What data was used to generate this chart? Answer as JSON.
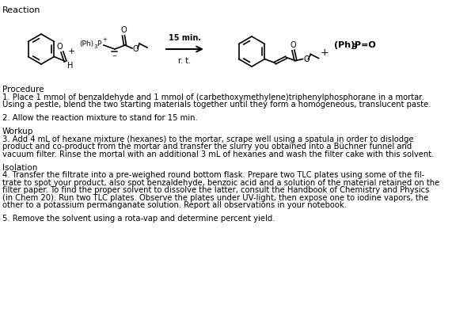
{
  "title": "Reaction",
  "reaction_label_15min": "15 min.",
  "reaction_label_rt": "r. t.",
  "procedure_header": "Procedure",
  "step1a": "1. Place 1 mmol of benzaldehyde and 1 mmol of (carbethoxymethylene)triphenylphosphorane in a mortar.",
  "step1b": "Using a pestle, blend the two starting materials together until they form a homogeneous, translucent paste.",
  "step2": "2. Allow the reaction mixture to stand for 15 min.",
  "workup_header": "Workup",
  "step3a": "3. Add 4 mL of hexane mixture (hexanes) to the mortar, scrape well using a spatula in order to dislodge",
  "step3b": "product and co-product from the mortar and transfer the slurry you obtained into a Büchner funnel and",
  "step3c": "vacuum filter. Rinse the mortal with an additional 3 mL of hexanes and wash the filter cake with this solvent.",
  "isolation_header": "Isolation",
  "step4a": "4. Transfer the filtrate into a pre-weighed round bottom flask. Prepare two TLC plates using some of the fil-",
  "step4b": "trate to spot your product, also spot benzaldehyde, benzoic acid and a solution of the material retained on the",
  "step4c": "filter paper. To find the proper solvent to dissolve the latter, consult the Handbook of Chemistry and Physics",
  "step4d": "(in Chem 20). Run two TLC plates. Observe the plates under UV-light, then expose one to iodine vapors, the",
  "step4e": "other to a potassium permanganate solution. Report all observations in your notebook.",
  "step5": "5. Remove the solvent using a rota-vap and determine percent yield.",
  "bg_color": "#ffffff",
  "text_color": "#000000",
  "lw": 1.2
}
